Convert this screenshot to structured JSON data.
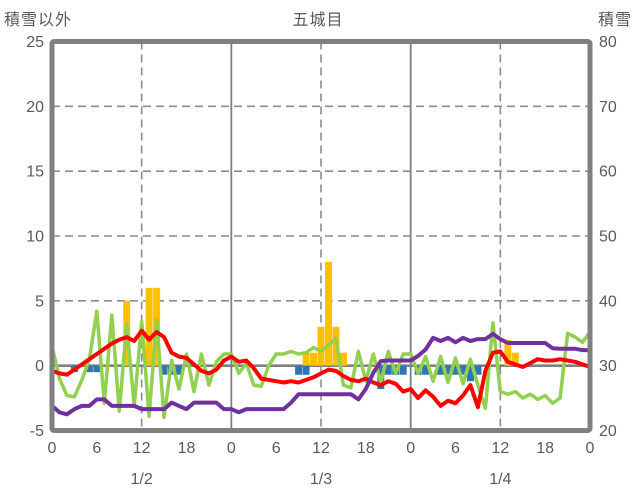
{
  "header": {
    "left_axis_title": "積雪以外",
    "chart_title": "五城目",
    "right_axis_title": "積雪"
  },
  "colors": {
    "precip_bar": "#FFC000",
    "blue_bar": "#2E75B6",
    "red_line": "#FF0000",
    "green_line": "#92D050",
    "purple_line": "#7030A0",
    "axis_gray": "#808080",
    "grid_gray": "#8C8C8C",
    "text_gray": "#595959"
  },
  "chart_data": {
    "type": "bar+line combo, dual y-axis",
    "title": "五城目",
    "left_axis_label": "積雪以外",
    "right_axis_label": "積雪",
    "left_ylim": [
      -5,
      25
    ],
    "right_ylim": [
      20,
      80
    ],
    "left_tick_labels": [
      "25",
      "20",
      "15",
      "10",
      "5",
      "0",
      "-5"
    ],
    "right_tick_labels": [
      "80",
      "70",
      "60",
      "50",
      "40",
      "30",
      "20"
    ],
    "x_hours_total": 72,
    "x_hour_tick_step": 6,
    "x_hour_tick_labels": [
      "0",
      "6",
      "12",
      "18",
      "0",
      "6",
      "12",
      "18",
      "0",
      "6",
      "12",
      "18",
      "0"
    ],
    "day_labels": [
      "1/2",
      "1/3",
      "1/4"
    ],
    "grid": {
      "horizontal_dashed_every": 5,
      "vertical_dashed_at_noon": true,
      "vertical_solid_at_midnight": true,
      "zero_line_solid": true
    },
    "series": [
      {
        "id": "precipitation_bars_yellow",
        "type": "bar",
        "axis": "left",
        "color": "#FFC000",
        "values": [
          0,
          0,
          0,
          0,
          0,
          0,
          0,
          0,
          0,
          0,
          5,
          0,
          0,
          6,
          6,
          0,
          0,
          0,
          0,
          0,
          0,
          0,
          0,
          0,
          0,
          0,
          0,
          0,
          0,
          0,
          0,
          0,
          0,
          0,
          1,
          1,
          3,
          8,
          3,
          1,
          0,
          0,
          0,
          0,
          0,
          0,
          0,
          0,
          0,
          0,
          0,
          0,
          0,
          0,
          0,
          0,
          0,
          0,
          0,
          0,
          0,
          2,
          1,
          0,
          0,
          0,
          0,
          0,
          0,
          0,
          0,
          0,
          0
        ]
      },
      {
        "id": "blue_bars_below_zero",
        "type": "bar",
        "axis": "left",
        "color": "#2E75B6",
        "values": [
          0,
          0,
          0,
          -0.5,
          0,
          -0.5,
          -0.5,
          0,
          0,
          0,
          0,
          0,
          0,
          0,
          0,
          -0.7,
          -0.7,
          -0.7,
          0,
          0,
          0,
          0,
          0,
          0,
          0,
          0,
          0,
          0,
          0,
          0,
          0,
          0,
          0,
          -0.7,
          -0.7,
          0,
          0,
          0,
          0,
          0,
          0,
          0,
          0,
          0,
          -1.8,
          -0.7,
          -0.7,
          -0.7,
          0,
          -0.7,
          -0.7,
          0,
          -0.7,
          -0.7,
          -0.7,
          -0.7,
          -1.2,
          -0.7,
          0,
          0,
          0,
          0,
          0,
          0,
          0,
          0,
          0,
          0,
          0,
          0,
          0,
          0,
          0
        ]
      },
      {
        "id": "green_line",
        "type": "line",
        "axis": "left",
        "color": "#92D050",
        "values": [
          1.5,
          -1.0,
          -2.3,
          -2.4,
          -1.1,
          0.5,
          4.2,
          -2.9,
          3.9,
          -3.5,
          3.2,
          -3.1,
          3.4,
          -3.9,
          3.5,
          -4.0,
          0.4,
          -1.8,
          0.9,
          -2.0,
          0.9,
          -1.5,
          0.3,
          0.9,
          0.9,
          -0.6,
          0.2,
          -1.5,
          -1.6,
          0.0,
          0.9,
          0.9,
          1.1,
          0.9,
          1.0,
          1.4,
          1.1,
          1.6,
          2.1,
          -1.5,
          -1.7,
          1.1,
          -1.2,
          0.9,
          -1.3,
          1.1,
          -0.6,
          0.9,
          0.9,
          -0.6,
          0.7,
          -1.2,
          0.7,
          -1.3,
          0.6,
          -1.4,
          0.5,
          -1.5,
          -3.3,
          3.3,
          -2.0,
          -2.2,
          -2.0,
          -2.5,
          -2.2,
          -2.6,
          -2.3,
          -2.9,
          -2.5,
          2.5,
          2.2,
          1.8,
          2.6
        ]
      },
      {
        "id": "red_temperature_line",
        "type": "line",
        "axis": "left",
        "color": "#FF0000",
        "values": [
          -0.4,
          -0.6,
          -0.7,
          -0.3,
          0.1,
          0.5,
          0.9,
          1.3,
          1.7,
          2.0,
          2.2,
          1.9,
          2.7,
          2.0,
          2.6,
          2.2,
          1.0,
          0.7,
          0.6,
          0.1,
          -0.4,
          -0.6,
          -0.3,
          0.4,
          0.7,
          0.3,
          0.4,
          -0.2,
          -1.0,
          -1.1,
          -1.2,
          -1.3,
          -1.2,
          -1.3,
          -1.1,
          -0.9,
          -0.6,
          -0.3,
          -0.4,
          -0.8,
          -1.1,
          -1.2,
          -1.0,
          -1.3,
          -1.5,
          -1.2,
          -1.4,
          -2.0,
          -1.8,
          -2.5,
          -1.9,
          -2.4,
          -3.1,
          -2.7,
          -2.9,
          -2.3,
          -1.5,
          -3.2,
          -0.4,
          1.0,
          1.1,
          0.3,
          0.1,
          -0.1,
          0.2,
          0.5,
          0.4,
          0.4,
          0.5,
          0.4,
          0.3,
          0.1,
          -0.1
        ]
      },
      {
        "id": "purple_snow_depth_line",
        "type": "line",
        "axis": "right",
        "color": "#7030A0",
        "values": [
          23.8,
          22.8,
          22.5,
          23.3,
          23.8,
          23.8,
          24.8,
          24.8,
          23.8,
          23.8,
          23.8,
          23.8,
          23.3,
          23.3,
          23.3,
          23.3,
          24.3,
          23.8,
          23.3,
          24.3,
          24.3,
          24.3,
          24.3,
          23.3,
          23.3,
          22.8,
          23.3,
          23.3,
          23.3,
          23.3,
          23.3,
          23.3,
          24.3,
          25.6,
          25.6,
          25.6,
          25.6,
          25.6,
          25.6,
          25.6,
          25.6,
          24.8,
          26.4,
          28.9,
          30.7,
          30.8,
          30.8,
          30.8,
          30.8,
          31.5,
          32.5,
          34.3,
          33.8,
          34.3,
          33.6,
          34.3,
          33.8,
          34.1,
          34.1,
          34.9,
          34.1,
          33.5,
          33.5,
          33.5,
          33.5,
          33.5,
          33.5,
          32.7,
          32.6,
          32.6,
          32.6,
          32.4,
          32.4
        ]
      }
    ]
  }
}
